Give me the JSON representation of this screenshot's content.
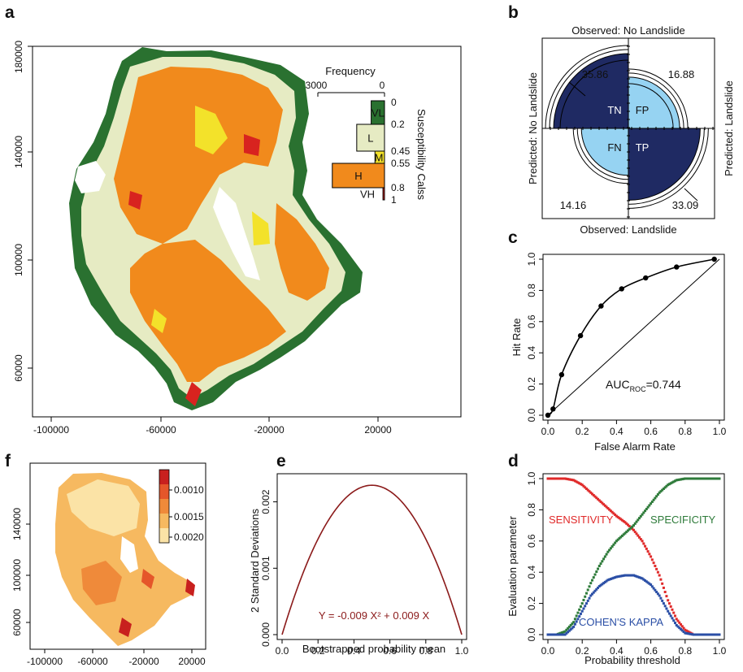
{
  "panels": {
    "a": {
      "label": "a",
      "xticks": [
        "-100000",
        "-60000",
        "-20000",
        "20000"
      ],
      "yticks": [
        "60000",
        "100000",
        "140000",
        "180000"
      ],
      "hist_title": "Frequency",
      "hist_axis": [
        "3000",
        "0"
      ],
      "classes": [
        {
          "label": "VL",
          "freq": 600,
          "color": "#2a7130"
        },
        {
          "label": "L",
          "freq": 1250,
          "color": "#e6ebc3"
        },
        {
          "label": "M",
          "freq": 430,
          "color": "#f3e22a"
        },
        {
          "label": "H",
          "freq": 2350,
          "color": "#f18a1c"
        },
        {
          "label": "VH",
          "freq": 70,
          "color": "#d8231f"
        }
      ],
      "breaks": [
        "0",
        "0.2",
        "0.45",
        "0.55",
        "0.8",
        "1"
      ],
      "hist_ylabel": "Susceptibility Calss"
    },
    "b": {
      "label": "b",
      "top": "Observed: No Landslide",
      "bottom": "Observed: Landslide",
      "left": "Predicted: No Landslide",
      "right": "Predicted: Landslide",
      "cells": [
        {
          "name": "TN",
          "value": "35.86"
        },
        {
          "name": "FP",
          "value": "16.88"
        },
        {
          "name": "FN",
          "value": "14.16"
        },
        {
          "name": "TP",
          "value": "33.09"
        }
      ],
      "colors": {
        "dark": "#1f2a63",
        "light": "#96d3f2"
      }
    },
    "c": {
      "label": "c",
      "auc_prefix": "AUC",
      "auc_sub": "ROC",
      "auc_value": "=0.744"
    },
    "d": {
      "label": "d",
      "series_labels": {
        "sensitivity": "SENSITIVITY",
        "specificity": "SPECIFICITY",
        "kappa": "COHEN'S KAPPA"
      },
      "colors": {
        "sensitivity": "#e02a2a",
        "specificity": "#2e7b3a",
        "kappa": "#2b4fa6"
      }
    },
    "e": {
      "label": "e",
      "equation": "Y = -0.009 X² + 0.009 X",
      "curve_color": "#8b1a1a"
    },
    "f": {
      "label": "f",
      "xticks": [
        "-100000",
        "-60000",
        "-20000",
        "20000"
      ],
      "yticks": [
        "60000",
        "100000",
        "140000"
      ],
      "legend_ticks": [
        "0.0010",
        "0.0015",
        "0.0020"
      ],
      "legend_colors": [
        "#c8201e",
        "#e5562a",
        "#ef8a3a",
        "#f6b960",
        "#fbe3a6"
      ]
    }
  },
  "chart_data": [
    {
      "type": "line",
      "panel": "c",
      "x": [
        0,
        0.03,
        0.08,
        0.19,
        0.31,
        0.43,
        0.57,
        0.75,
        0.97
      ],
      "y": [
        0,
        0.04,
        0.26,
        0.51,
        0.7,
        0.81,
        0.88,
        0.95,
        1.0
      ],
      "xlabel": "False Alarm Rate",
      "ylabel": "Hit Rate",
      "xlim": [
        0,
        1
      ],
      "ylim": [
        0,
        1
      ],
      "xticks": [
        "0.0",
        "0.2",
        "0.4",
        "0.6",
        "0.8",
        "1.0"
      ],
      "yticks": [
        "0.0",
        "0.2",
        "0.4",
        "0.6",
        "0.8",
        "1.0"
      ],
      "reference_line": true
    },
    {
      "type": "scatter",
      "panel": "d",
      "x": [
        0,
        0.05,
        0.1,
        0.15,
        0.2,
        0.25,
        0.3,
        0.35,
        0.4,
        0.45,
        0.5,
        0.55,
        0.6,
        0.65,
        0.7,
        0.75,
        0.8,
        0.85,
        0.9,
        0.95,
        1.0
      ],
      "series": [
        {
          "name": "SENSITIVITY",
          "values": [
            1,
            1,
            1,
            0.99,
            0.96,
            0.91,
            0.86,
            0.81,
            0.76,
            0.72,
            0.67,
            0.6,
            0.5,
            0.38,
            0.22,
            0.1,
            0.03,
            0,
            0,
            0,
            0
          ]
        },
        {
          "name": "SPECIFICITY",
          "values": [
            0,
            0,
            0.02,
            0.08,
            0.2,
            0.33,
            0.44,
            0.53,
            0.6,
            0.65,
            0.7,
            0.77,
            0.84,
            0.91,
            0.96,
            0.99,
            1,
            1,
            1,
            1,
            1
          ]
        },
        {
          "name": "COHEN'S KAPPA",
          "values": [
            0,
            0,
            0,
            0.05,
            0.15,
            0.25,
            0.31,
            0.35,
            0.37,
            0.38,
            0.38,
            0.36,
            0.32,
            0.25,
            0.15,
            0.06,
            0.01,
            0,
            0,
            0,
            0
          ]
        }
      ],
      "xlabel": "Probability threshold",
      "ylabel": "Evaluation parameter",
      "xlim": [
        0,
        1
      ],
      "ylim": [
        0,
        1
      ],
      "xticks": [
        "0.0",
        "0.2",
        "0.4",
        "0.6",
        "0.8",
        "1.0"
      ],
      "yticks": [
        "0.0",
        "0.2",
        "0.4",
        "0.6",
        "0.8",
        "1.0"
      ]
    },
    {
      "type": "line",
      "panel": "e",
      "equation_coeffs": {
        "a": -0.009,
        "b": 0.009
      },
      "xlabel": "Bootstrapped probability mean",
      "ylabel": "2 Standard Deviations",
      "xlim": [
        0,
        1
      ],
      "ylim": [
        0,
        0.00235
      ],
      "xticks": [
        "0.0",
        "0.2",
        "0.4",
        "0.6",
        "0.8",
        "1.0"
      ],
      "yticks": [
        "0.000",
        "0.001",
        "0.002"
      ],
      "ytick_values": [
        0,
        0.001,
        0.002
      ]
    }
  ]
}
